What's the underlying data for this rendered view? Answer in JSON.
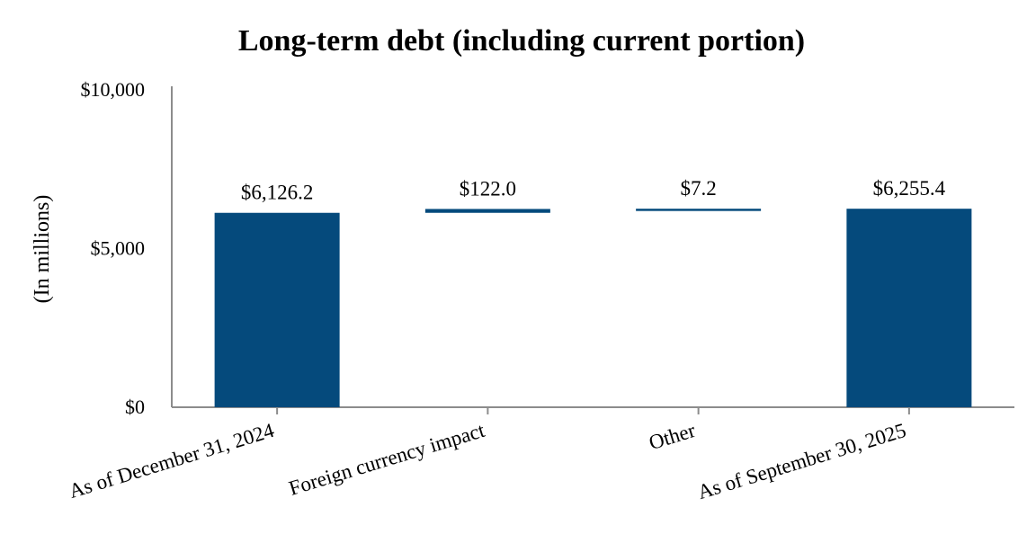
{
  "chart_data": {
    "type": "waterfall",
    "title": "Long-term debt (including current portion)",
    "ylabel": "(In millions)",
    "xlabel": "",
    "ylim": [
      0,
      10000
    ],
    "yticks": [
      0,
      5000,
      10000
    ],
    "ytick_labels": [
      "$0",
      "$5,000",
      "$10,000"
    ],
    "categories": [
      "As of December 31, 2024",
      "Foreign currency impact",
      "Other",
      "As of September 30, 2025"
    ],
    "values": [
      6126.2,
      122.0,
      7.2,
      6255.4
    ],
    "kinds": [
      "total",
      "delta",
      "delta",
      "total"
    ],
    "data_labels": [
      "$6,126.2",
      "$122.0",
      "$7.2",
      "$6,255.4"
    ],
    "grid": false,
    "legend": "none",
    "bar_color": "#054a7c",
    "axis_color": "#8c8c8c"
  }
}
